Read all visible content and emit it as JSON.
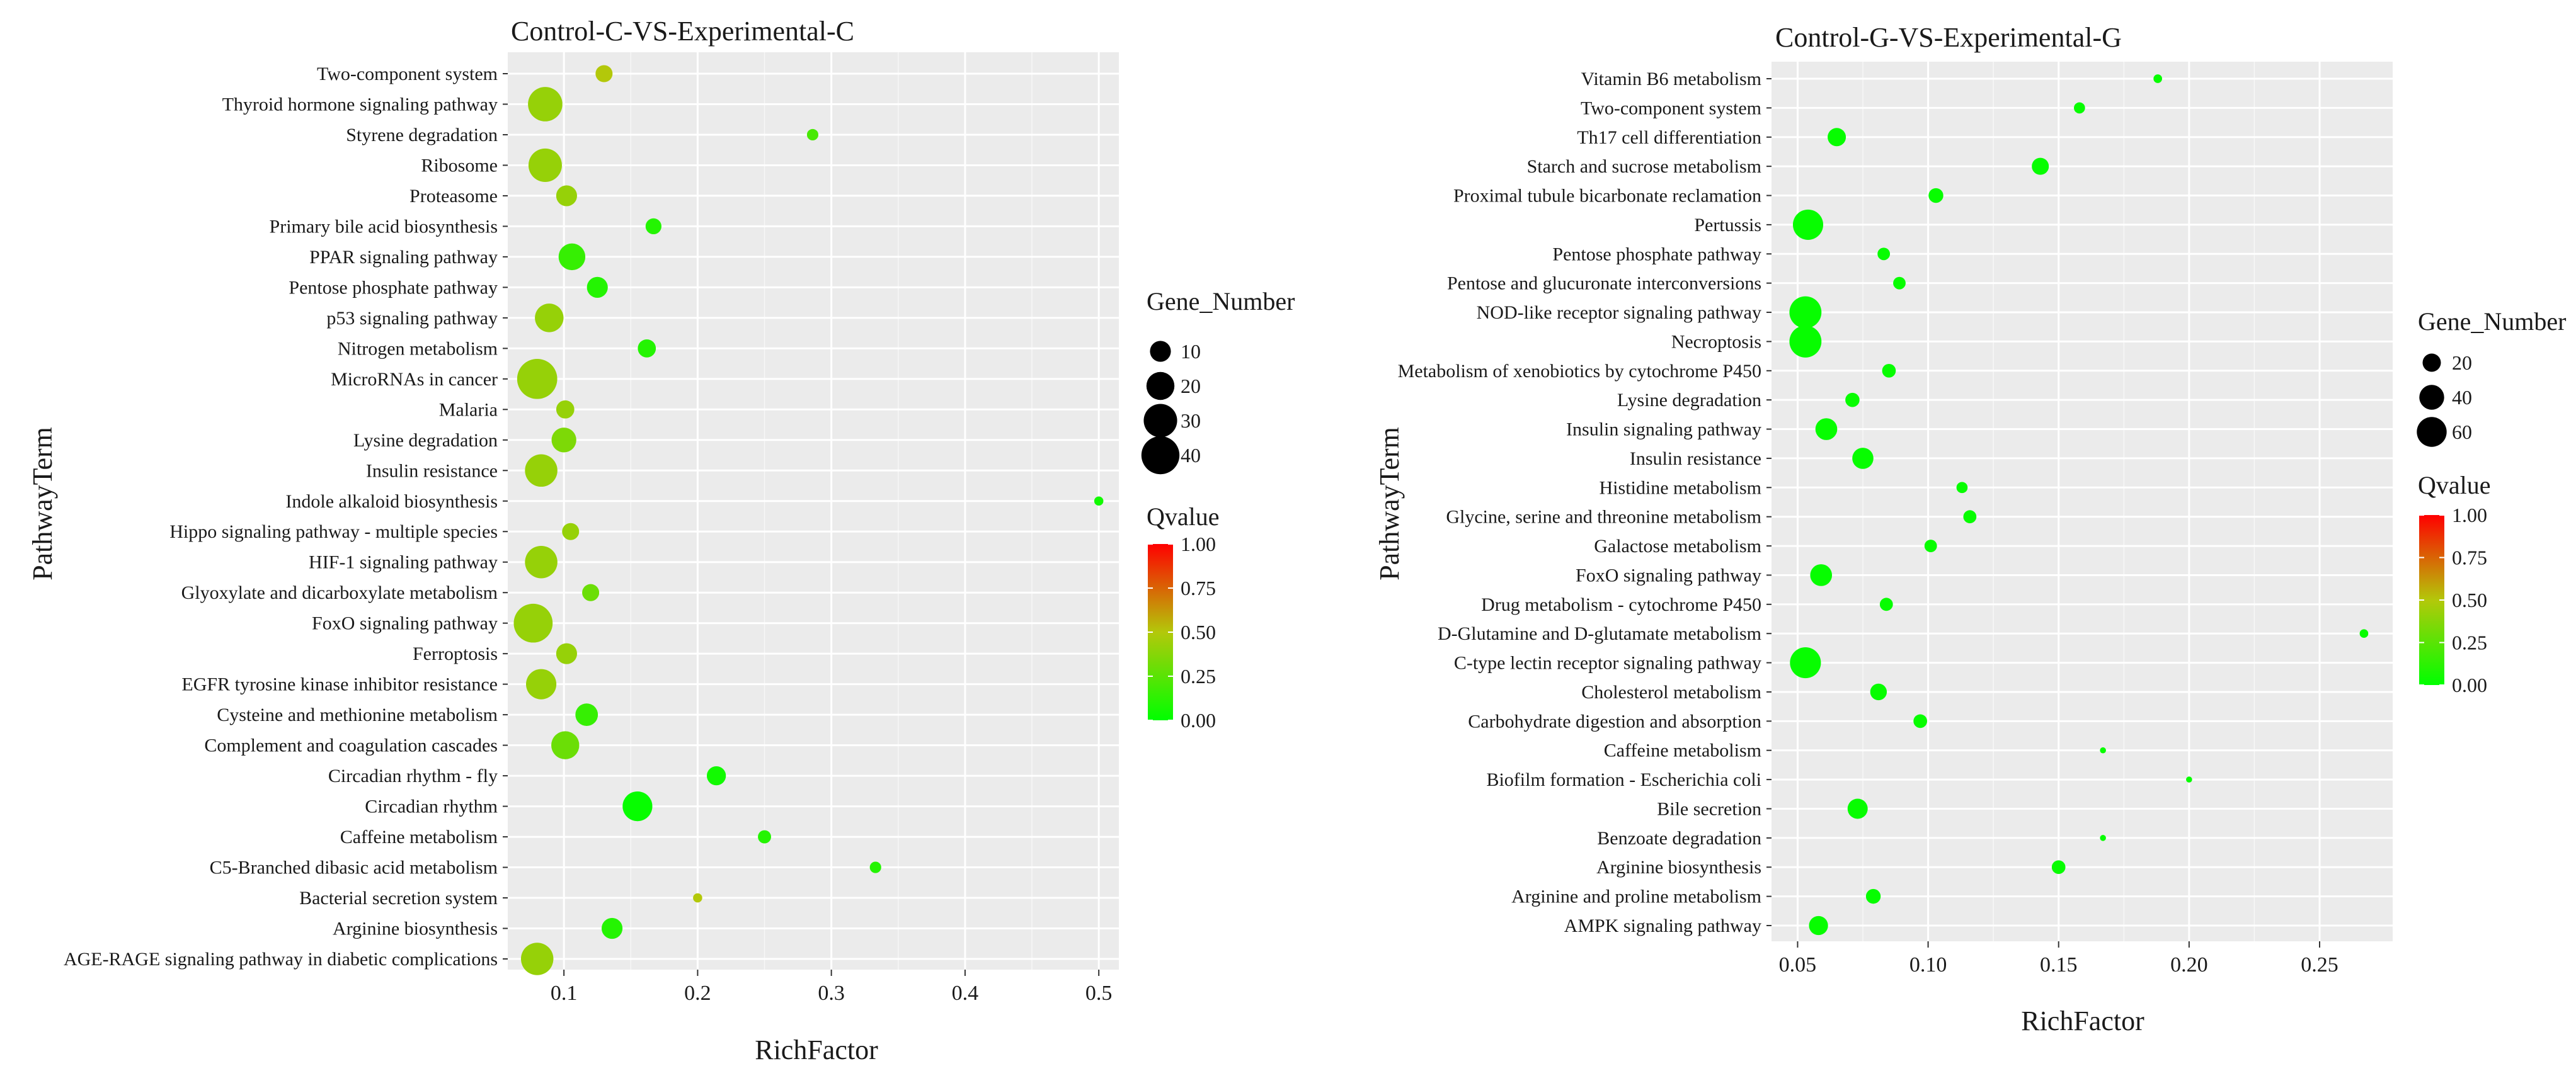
{
  "chart_data": [
    {
      "type": "scatter",
      "title": "Control-C-VS-Experimental-C",
      "xlabel": "RichFactor",
      "ylabel": "PathwayTerm",
      "xlim": [
        0.058,
        0.515
      ],
      "xticks": [
        0.1,
        0.2,
        0.3,
        0.4,
        0.5
      ],
      "xtick_labels": [
        "0.1",
        "0.2",
        "0.3",
        "0.4",
        "0.5"
      ],
      "size_legend": {
        "title": "Gene_Number",
        "values": [
          10,
          20,
          30,
          40
        ],
        "labels": [
          "10",
          "20",
          "30",
          "40"
        ]
      },
      "color_legend": {
        "title": "Qvalue",
        "min": 0,
        "max": 1,
        "ticks": [
          "1.00",
          "0.75",
          "0.50",
          "0.25",
          "0.00"
        ]
      },
      "points": [
        {
          "term": "Two-component system",
          "rich": 0.13,
          "genes": 6,
          "q": 0.5
        },
        {
          "term": "Thyroid hormone signaling pathway",
          "rich": 0.086,
          "genes": 32,
          "q": 0.42
        },
        {
          "term": "Styrene degradation",
          "rich": 0.286,
          "genes": 2,
          "q": 0.2
        },
        {
          "term": "Ribosome",
          "rich": 0.086,
          "genes": 30,
          "q": 0.42
        },
        {
          "term": "Proteasome",
          "rich": 0.102,
          "genes": 10,
          "q": 0.42
        },
        {
          "term": "Primary bile acid biosynthesis",
          "rich": 0.167,
          "genes": 5,
          "q": 0.1
        },
        {
          "term": "PPAR signaling pathway",
          "rich": 0.106,
          "genes": 18,
          "q": 0.15
        },
        {
          "term": "Pentose phosphate pathway",
          "rich": 0.125,
          "genes": 10,
          "q": 0.1
        },
        {
          "term": "p53 signaling pathway",
          "rich": 0.089,
          "genes": 21,
          "q": 0.42
        },
        {
          "term": "Nitrogen metabolism",
          "rich": 0.162,
          "genes": 7,
          "q": 0.1
        },
        {
          "term": "MicroRNAs in cancer",
          "rich": 0.08,
          "genes": 45,
          "q": 0.42
        },
        {
          "term": "Malaria",
          "rich": 0.101,
          "genes": 7,
          "q": 0.42
        },
        {
          "term": "Lysine degradation",
          "rich": 0.1,
          "genes": 15,
          "q": 0.35
        },
        {
          "term": "Insulin resistance",
          "rich": 0.083,
          "genes": 28,
          "q": 0.42
        },
        {
          "term": "Indole alkaloid biosynthesis",
          "rich": 0.5,
          "genes": 1,
          "q": 0.05
        },
        {
          "term": "Hippo signaling pathway - multiple species",
          "rich": 0.105,
          "genes": 6,
          "q": 0.42
        },
        {
          "term": "HIF-1 signaling pathway",
          "rich": 0.083,
          "genes": 28,
          "q": 0.42
        },
        {
          "term": "Glyoxylate and dicarboxylate metabolism",
          "rich": 0.12,
          "genes": 6,
          "q": 0.3
        },
        {
          "term": "FoxO signaling pathway",
          "rich": 0.077,
          "genes": 42,
          "q": 0.42
        },
        {
          "term": "Ferroptosis",
          "rich": 0.102,
          "genes": 10,
          "q": 0.42
        },
        {
          "term": "EGFR tyrosine kinase inhibitor resistance",
          "rich": 0.083,
          "genes": 24,
          "q": 0.42
        },
        {
          "term": "Cysteine and methionine metabolism",
          "rich": 0.117,
          "genes": 12,
          "q": 0.15
        },
        {
          "term": "Complement and coagulation cascades",
          "rich": 0.101,
          "genes": 20,
          "q": 0.3
        },
        {
          "term": "Circadian rhythm - fly",
          "rich": 0.214,
          "genes": 8,
          "q": 0.05
        },
        {
          "term": "Circadian rhythm",
          "rich": 0.155,
          "genes": 23,
          "q": 0.02
        },
        {
          "term": "Caffeine metabolism",
          "rich": 0.25,
          "genes": 3,
          "q": 0.1
        },
        {
          "term": "C5-Branched dibasic acid metabolism",
          "rich": 0.333,
          "genes": 2,
          "q": 0.1
        },
        {
          "term": "Bacterial secretion system",
          "rich": 0.2,
          "genes": 1,
          "q": 0.5
        },
        {
          "term": "Arginine biosynthesis",
          "rich": 0.136,
          "genes": 10,
          "q": 0.1
        },
        {
          "term": "AGE-RAGE signaling pathway in diabetic complications",
          "rich": 0.08,
          "genes": 28,
          "q": 0.42
        }
      ]
    },
    {
      "type": "scatter",
      "title": "Control-G-VS-Experimental-G",
      "xlabel": "RichFactor",
      "ylabel": "PathwayTerm",
      "xlim": [
        0.04,
        0.278
      ],
      "xticks": [
        0.05,
        0.1,
        0.15,
        0.2,
        0.25
      ],
      "xtick_labels": [
        "0.05",
        "0.10",
        "0.15",
        "0.20",
        "0.25"
      ],
      "size_legend": {
        "title": "Gene_Number",
        "values": [
          20,
          40,
          60
        ],
        "labels": [
          "20",
          "40",
          "60"
        ]
      },
      "color_legend": {
        "title": "Qvalue",
        "min": 0,
        "max": 1,
        "ticks": [
          "1.00",
          "0.75",
          "0.50",
          "0.25",
          "0.00"
        ]
      },
      "points": [
        {
          "term": "Vitamin B6 metabolism",
          "rich": 0.188,
          "genes": 3,
          "q": 0.02
        },
        {
          "term": "Two-component system",
          "rich": 0.158,
          "genes": 6,
          "q": 0.02
        },
        {
          "term": "Th17 cell differentiation",
          "rich": 0.065,
          "genes": 20,
          "q": 0.02
        },
        {
          "term": "Starch and sucrose metabolism",
          "rich": 0.143,
          "genes": 17,
          "q": 0.02
        },
        {
          "term": "Proximal tubule bicarbonate reclamation",
          "rich": 0.103,
          "genes": 12,
          "q": 0.02
        },
        {
          "term": "Pertussis",
          "rich": 0.054,
          "genes": 62,
          "q": 0.02
        },
        {
          "term": "Pentose phosphate pathway",
          "rich": 0.083,
          "genes": 8,
          "q": 0.02
        },
        {
          "term": "Pentose and glucuronate interconversions",
          "rich": 0.089,
          "genes": 8,
          "q": 0.02
        },
        {
          "term": "NOD-like receptor signaling pathway",
          "rich": 0.053,
          "genes": 70,
          "q": 0.02
        },
        {
          "term": "Necroptosis",
          "rich": 0.053,
          "genes": 70,
          "q": 0.02
        },
        {
          "term": "Metabolism of xenobiotics by cytochrome P450",
          "rich": 0.085,
          "genes": 10,
          "q": 0.02
        },
        {
          "term": "Lysine degradation",
          "rich": 0.071,
          "genes": 11,
          "q": 0.02
        },
        {
          "term": "Insulin signaling pathway",
          "rich": 0.061,
          "genes": 30,
          "q": 0.02
        },
        {
          "term": "Insulin resistance",
          "rich": 0.075,
          "genes": 28,
          "q": 0.02
        },
        {
          "term": "Histidine metabolism",
          "rich": 0.113,
          "genes": 6,
          "q": 0.02
        },
        {
          "term": "Glycine, serine and threonine metabolism",
          "rich": 0.116,
          "genes": 9,
          "q": 0.02
        },
        {
          "term": "Galactose metabolism",
          "rich": 0.101,
          "genes": 8,
          "q": 0.02
        },
        {
          "term": "FoxO signaling pathway",
          "rich": 0.059,
          "genes": 30,
          "q": 0.02
        },
        {
          "term": "Drug metabolism - cytochrome P450",
          "rich": 0.084,
          "genes": 9,
          "q": 0.02
        },
        {
          "term": "D-Glutamine and D-glutamate metabolism",
          "rich": 0.267,
          "genes": 3,
          "q": 0.02
        },
        {
          "term": "C-type lectin receptor signaling pathway",
          "rich": 0.053,
          "genes": 65,
          "q": 0.02
        },
        {
          "term": "Cholesterol metabolism",
          "rich": 0.081,
          "genes": 16,
          "q": 0.02
        },
        {
          "term": "Carbohydrate digestion and absorption",
          "rich": 0.097,
          "genes": 10,
          "q": 0.02
        },
        {
          "term": "Caffeine metabolism",
          "rich": 0.167,
          "genes": 1,
          "q": 0.02
        },
        {
          "term": "Biofilm formation - Escherichia coli",
          "rich": 0.2,
          "genes": 1,
          "q": 0.02
        },
        {
          "term": "Bile secretion",
          "rich": 0.073,
          "genes": 25,
          "q": 0.02
        },
        {
          "term": "Benzoate degradation",
          "rich": 0.167,
          "genes": 1,
          "q": 0.02
        },
        {
          "term": "Arginine biosynthesis",
          "rich": 0.15,
          "genes": 10,
          "q": 0.02
        },
        {
          "term": "Arginine and proline metabolism",
          "rich": 0.079,
          "genes": 12,
          "q": 0.02
        },
        {
          "term": "AMPK signaling pathway",
          "rich": 0.058,
          "genes": 22,
          "q": 0.02
        }
      ]
    }
  ]
}
